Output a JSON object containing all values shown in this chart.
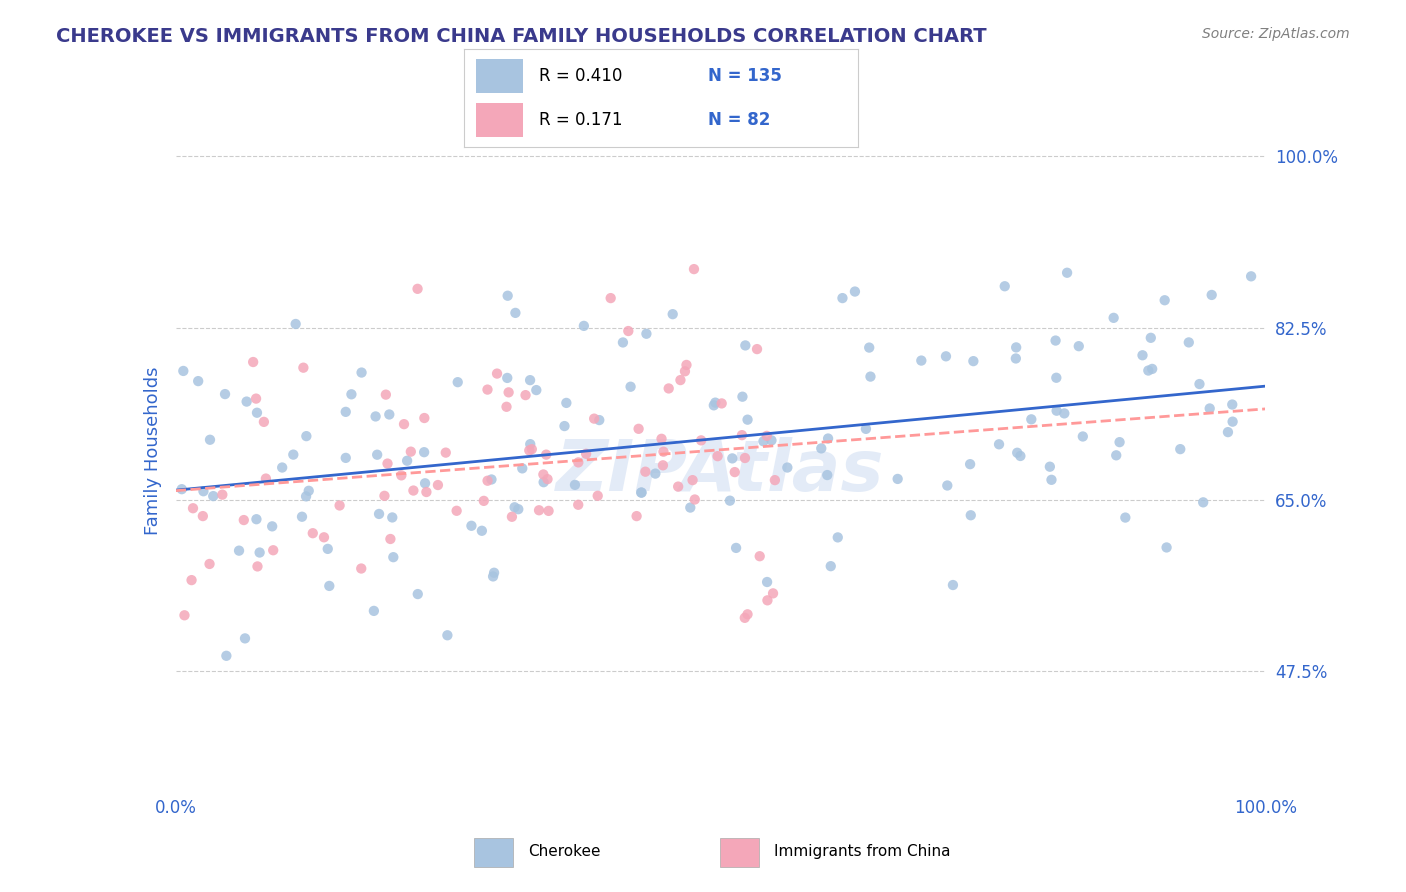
{
  "title": "CHEROKEE VS IMMIGRANTS FROM CHINA FAMILY HOUSEHOLDS CORRELATION CHART",
  "source": "Source: ZipAtlas.com",
  "xlabel": "",
  "ylabel": "Family Households",
  "x_tick_labels": [
    "0.0%",
    "100.0%"
  ],
  "y_tick_labels": [
    "47.5%",
    "65.0%",
    "82.5%",
    "100.0%"
  ],
  "y_tick_values": [
    0.475,
    0.65,
    0.825,
    1.0
  ],
  "x_lim": [
    0.0,
    1.0
  ],
  "y_lim": [
    0.35,
    1.05
  ],
  "cherokee_color": "#a8c4e0",
  "china_color": "#f4a7b9",
  "cherokee_line_color": "#3366cc",
  "china_line_color": "#ff9999",
  "legend_box_cherokee": "#a8c4e0",
  "legend_box_china": "#f4a7b9",
  "R_cherokee": 0.41,
  "N_cherokee": 135,
  "R_china": 0.171,
  "N_china": 82,
  "watermark": "ZIPAtlas",
  "background_color": "#ffffff",
  "grid_color": "#cccccc",
  "title_color": "#3a3a8c",
  "axis_label_color": "#3366cc",
  "tick_label_color": "#3366cc"
}
